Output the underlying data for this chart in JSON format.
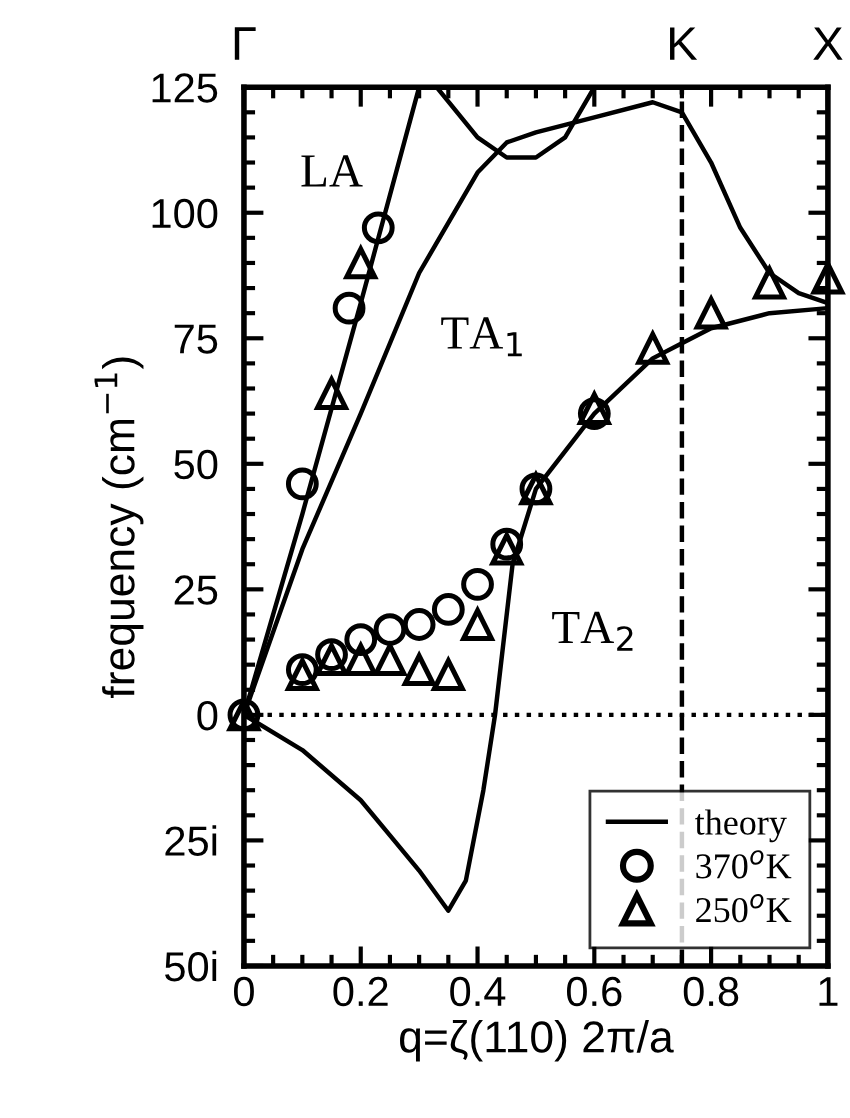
{
  "chart_data": {
    "type": "line",
    "xlabel": "q=ζ(110) 2π/a",
    "ylabel": "frequency (cm$^{−1}$)",
    "xlim": [
      0,
      1
    ],
    "ylim": [
      -50,
      125
    ],
    "xticks": [
      0,
      0.2,
      0.4,
      0.6,
      0.8,
      1
    ],
    "yticks": [
      {
        "value": -50,
        "label": "50i"
      },
      {
        "value": -25,
        "label": "25i"
      },
      0,
      25,
      50,
      75,
      100,
      125
    ],
    "series": [
      {
        "name": "theory",
        "color": "#000000",
        "marker": "none",
        "line_style": "solid",
        "x": [
          0,
          0.1,
          0.2,
          0.25,
          0.3,
          0.35,
          0.38,
          0.41,
          0.43,
          0.46,
          0.5,
          0.6,
          0.7,
          0.75,
          0.8,
          0.9,
          1
        ],
        "values": [
          0,
          -7,
          -17,
          -24,
          -31,
          -39,
          -33,
          -15,
          0,
          30,
          45,
          60,
          71,
          74,
          77,
          80,
          81
        ]
      },
      {
        "color": "#000000",
        "marker": "none",
        "line_style": "solid",
        "x": [
          0,
          0.1,
          0.2,
          0.3
        ],
        "values": [
          0,
          40,
          82,
          125
        ]
      },
      {
        "color": "#000000",
        "marker": "none",
        "line_style": "solid",
        "x": [
          0.33,
          0.4,
          0.45,
          0.5,
          0.55,
          0.6
        ],
        "values": [
          125,
          115,
          111,
          111,
          115,
          125
        ]
      },
      {
        "color": "#000000",
        "marker": "none",
        "line_style": "solid",
        "x": [
          0,
          0.1,
          0.2,
          0.3,
          0.4,
          0.45,
          0.5,
          0.6,
          0.7,
          0.75,
          0.8,
          0.85,
          0.9,
          0.95,
          1
        ],
        "values": [
          0,
          33,
          60,
          88,
          108,
          114,
          116,
          119,
          122,
          120,
          110,
          97,
          88,
          84,
          82
        ]
      },
      {
        "name": "370$^{o}$K",
        "type": "scatter",
        "color": "#000000",
        "marker": "circle",
        "x": [
          0,
          0.1,
          0.18,
          0.23,
          0.1,
          0.15,
          0.2,
          0.25,
          0.3,
          0.35,
          0.4,
          0.45,
          0.5,
          0.6
        ],
        "values": [
          0,
          46,
          81,
          97,
          9,
          12,
          15,
          17,
          18,
          21,
          26,
          34,
          45,
          60
        ]
      },
      {
        "name": "250$^{o}$K",
        "type": "scatter",
        "color": "#000000",
        "marker": "triangle",
        "x": [
          0,
          0.15,
          0.2,
          0.1,
          0.15,
          0.2,
          0.25,
          0.3,
          0.35,
          0.4,
          0.45,
          0.5,
          0.6,
          0.7,
          0.8,
          0.9,
          1
        ],
        "values": [
          0,
          64,
          90,
          8,
          11,
          11,
          11,
          9,
          8,
          18,
          33,
          45,
          61,
          73,
          80,
          86,
          87
        ]
      }
    ],
    "ref_lines": [
      {
        "axis": "x",
        "value": 0.75,
        "color": "#000000",
        "line_style": "dashed"
      },
      {
        "axis": "y",
        "value": 0,
        "color": "#000000",
        "line_style": "dotted"
      }
    ],
    "annotations": [
      "LA",
      "TA$_{1}$",
      "TA$_{2}$",
      "Γ",
      "K",
      "X"
    ],
    "legend": "bottom right",
    "grid": false
  }
}
